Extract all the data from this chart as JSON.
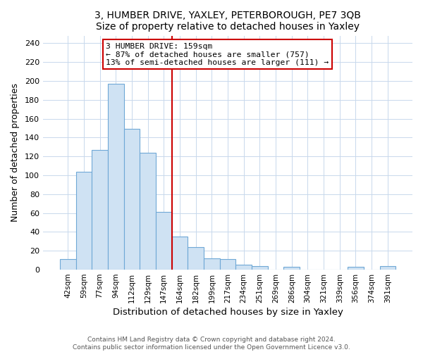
{
  "title1": "3, HUMBER DRIVE, YAXLEY, PETERBOROUGH, PE7 3QB",
  "title2": "Size of property relative to detached houses in Yaxley",
  "xlabel": "Distribution of detached houses by size in Yaxley",
  "ylabel": "Number of detached properties",
  "bin_labels": [
    "42sqm",
    "59sqm",
    "77sqm",
    "94sqm",
    "112sqm",
    "129sqm",
    "147sqm",
    "164sqm",
    "182sqm",
    "199sqm",
    "217sqm",
    "234sqm",
    "251sqm",
    "269sqm",
    "286sqm",
    "304sqm",
    "321sqm",
    "339sqm",
    "356sqm",
    "374sqm",
    "391sqm"
  ],
  "bar_heights": [
    11,
    104,
    127,
    197,
    149,
    124,
    61,
    35,
    24,
    12,
    11,
    5,
    4,
    0,
    3,
    0,
    0,
    0,
    3,
    0,
    4
  ],
  "bar_color": "#cfe2f3",
  "bar_edge_color": "#6fa8d6",
  "vline_color": "#cc0000",
  "annotation_title": "3 HUMBER DRIVE: 159sqm",
  "annotation_line1": "← 87% of detached houses are smaller (757)",
  "annotation_line2": "13% of semi-detached houses are larger (111) →",
  "annotation_box_edge": "#cc0000",
  "yticks": [
    0,
    20,
    40,
    60,
    80,
    100,
    120,
    140,
    160,
    180,
    200,
    220,
    240
  ],
  "ylim": [
    0,
    248
  ],
  "footer1": "Contains HM Land Registry data © Crown copyright and database right 2024.",
  "footer2": "Contains public sector information licensed under the Open Government Licence v3.0."
}
